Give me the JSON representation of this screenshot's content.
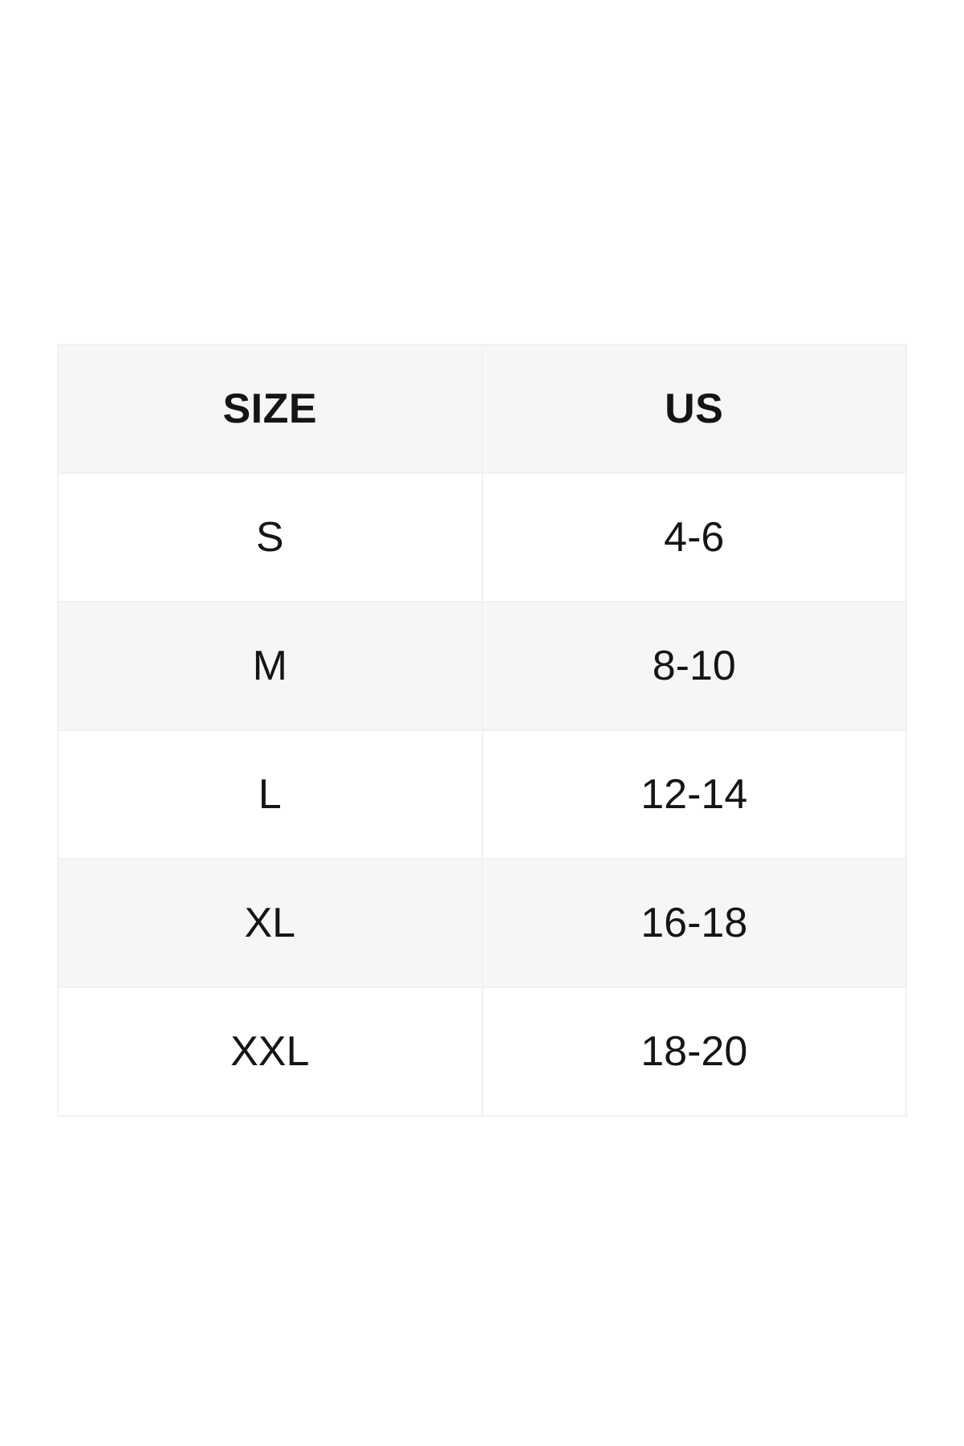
{
  "size_chart": {
    "columns": [
      {
        "key": "size",
        "label": "SIZE"
      },
      {
        "key": "us",
        "label": "US"
      }
    ],
    "rows": [
      {
        "size": "S",
        "us": "4-6"
      },
      {
        "size": "M",
        "us": "8-10"
      },
      {
        "size": "L",
        "us": "12-14"
      },
      {
        "size": "XL",
        "us": "16-18"
      },
      {
        "size": "XXL",
        "us": "18-20"
      }
    ],
    "colors": {
      "page_bg": "#ffffff",
      "header_bg": "#f6f6f6",
      "row_bg": "#ffffff",
      "row_alt_bg": "#f6f6f6",
      "border": "#f1f1f1",
      "text": "#151515"
    }
  }
}
